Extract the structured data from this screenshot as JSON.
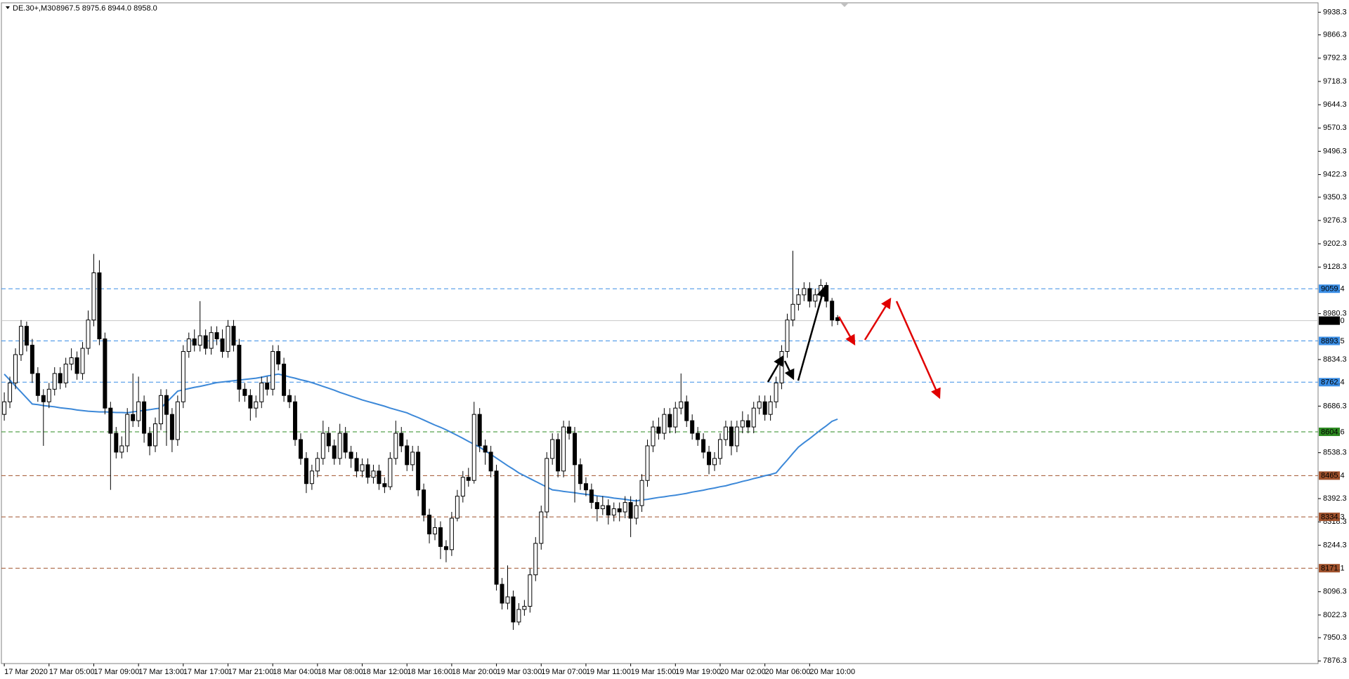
{
  "chart_data": {
    "type": "candlestick",
    "symbol": "DE.30+,M30",
    "quote": "8967.5 8975.6 8944.0 8958.0",
    "categories": [
      "17 Mar 2020",
      null,
      null,
      null,
      null,
      null,
      null,
      null,
      "17 Mar 05:00",
      null,
      null,
      null,
      null,
      null,
      null,
      null,
      "17 Mar 09:00",
      null,
      null,
      null,
      null,
      null,
      null,
      null,
      "17 Mar 13:00",
      null,
      null,
      null,
      null,
      null,
      null,
      null,
      "17 Mar 17:00",
      null,
      null,
      null,
      null,
      null,
      null,
      null,
      "17 Mar 21:00",
      null,
      null,
      null,
      null,
      null,
      null,
      null,
      "18 Mar 04:00",
      null,
      null,
      null,
      null,
      null,
      null,
      null,
      "18 Mar 08:00",
      null,
      null,
      null,
      null,
      null,
      null,
      null,
      "18 Mar 12:00",
      null,
      null,
      null,
      null,
      null,
      null,
      null,
      "18 Mar 16:00",
      null,
      null,
      null,
      null,
      null,
      null,
      null,
      "18 Mar 20:00",
      null,
      null,
      null,
      null,
      null,
      null,
      null,
      "19 Mar 03:00",
      null,
      null,
      null,
      null,
      null,
      null,
      null,
      "19 Mar 07:00",
      null,
      null,
      null,
      null,
      null,
      null,
      null,
      "19 Mar 11:00",
      null,
      null,
      null,
      null,
      null,
      null,
      null,
      "19 Mar 15:00",
      null,
      null,
      null,
      null,
      null,
      null,
      null,
      "19 Mar 19:00",
      null,
      null,
      null,
      null,
      null,
      null,
      null,
      "20 Mar 02:00",
      null,
      null,
      null,
      null,
      null,
      null,
      null,
      "20 Mar 06:00",
      null,
      null,
      null,
      null,
      null,
      null,
      null,
      "20 Mar 10:00",
      null,
      null,
      null,
      null,
      null
    ],
    "open": [
      8660,
      8700,
      8760,
      8850,
      8940,
      8880,
      8790,
      8720,
      8700,
      8740,
      8790,
      8760,
      8820,
      8840,
      8790,
      8870,
      8960,
      9110,
      8900,
      8680,
      8600,
      8540,
      8560,
      8660,
      8640,
      8700,
      8600,
      8560,
      8630,
      8720,
      8660,
      8580,
      8700,
      8860,
      8900,
      8880,
      8910,
      8870,
      8920,
      8900,
      8860,
      8940,
      8880,
      8740,
      8720,
      8680,
      8700,
      8760,
      8740,
      8860,
      8820,
      8720,
      8700,
      8580,
      8520,
      8440,
      8480,
      8520,
      8600,
      8560,
      8520,
      8600,
      8540,
      8520,
      8480,
      8500,
      8460,
      8480,
      8440,
      8430,
      8520,
      8600,
      8560,
      8500,
      8540,
      8420,
      8340,
      8280,
      8300,
      8240,
      8230,
      8330,
      8400,
      8460,
      8450,
      8660,
      8560,
      8540,
      8480,
      8120,
      8060,
      8080,
      8000,
      8040,
      8050,
      8150,
      8250,
      8350,
      8520,
      8580,
      8480,
      8620,
      8600,
      8500,
      8440,
      8420,
      8380,
      8360,
      8370,
      8340,
      8360,
      8350,
      8380,
      8330,
      8370,
      8450,
      8560,
      8620,
      8600,
      8660,
      8620,
      8680,
      8700,
      8640,
      8600,
      8580,
      8540,
      8500,
      8520,
      8580,
      8620,
      8560,
      8620,
      8640,
      8620,
      8680,
      8700,
      8660,
      8700,
      8760,
      8860,
      8960,
      9010,
      9040,
      9060,
      9020,
      9040,
      9070,
      9020,
      8967.5
    ],
    "high": [
      8730,
      8780,
      8870,
      8960,
      8955,
      8900,
      8810,
      8740,
      8760,
      8810,
      8810,
      8840,
      8870,
      8860,
      8890,
      8990,
      9170,
      9150,
      8920,
      8700,
      8620,
      8590,
      8680,
      8790,
      8780,
      8720,
      8620,
      8650,
      8740,
      8740,
      8680,
      8720,
      8880,
      8920,
      8930,
      9020,
      8930,
      8940,
      8940,
      8930,
      8960,
      8960,
      8900,
      8760,
      8740,
      8720,
      8780,
      8780,
      8880,
      8880,
      8840,
      8740,
      8720,
      8600,
      8540,
      8500,
      8540,
      8640,
      8620,
      8580,
      8630,
      8620,
      8560,
      8540,
      8520,
      8520,
      8500,
      8500,
      8460,
      8540,
      8640,
      8620,
      8580,
      8560,
      8560,
      8440,
      8360,
      8330,
      8320,
      8260,
      8350,
      8420,
      8480,
      8490,
      8700,
      8680,
      8580,
      8560,
      8500,
      8140,
      8180,
      8100,
      8060,
      8070,
      8170,
      8270,
      8370,
      8540,
      8600,
      8600,
      8640,
      8640,
      8620,
      8520,
      8460,
      8440,
      8400,
      8400,
      8390,
      8380,
      8380,
      8400,
      8400,
      8390,
      8470,
      8580,
      8640,
      8650,
      8680,
      8680,
      8700,
      8790,
      8720,
      8660,
      8620,
      8600,
      8560,
      8540,
      8600,
      8640,
      8640,
      8640,
      8670,
      8660,
      8700,
      8720,
      8720,
      8720,
      8780,
      8880,
      8980,
      9180,
      9060,
      9080,
      9080,
      9060,
      9090,
      9080,
      9030,
      8975.6
    ],
    "low": [
      8640,
      8680,
      8740,
      8830,
      8860,
      8760,
      8700,
      8560,
      8680,
      8720,
      8740,
      8745,
      8800,
      8770,
      8770,
      8850,
      8940,
      8880,
      8660,
      8420,
      8520,
      8520,
      8540,
      8620,
      8620,
      8570,
      8530,
      8540,
      8610,
      8560,
      8540,
      8560,
      8680,
      8840,
      8860,
      8860,
      8850,
      8850,
      8880,
      8840,
      8840,
      8860,
      8700,
      8700,
      8640,
      8650,
      8680,
      8720,
      8720,
      8800,
      8700,
      8680,
      8560,
      8500,
      8410,
      8420,
      8460,
      8500,
      8540,
      8500,
      8500,
      8520,
      8490,
      8460,
      8460,
      8440,
      8440,
      8420,
      8410,
      8420,
      8500,
      8540,
      8480,
      8480,
      8400,
      8320,
      8250,
      8260,
      8200,
      8190,
      8210,
      8320,
      8380,
      8430,
      8440,
      8540,
      8500,
      8460,
      8100,
      8040,
      8040,
      7975,
      7990,
      8020,
      8030,
      8130,
      8230,
      8330,
      8500,
      8460,
      8460,
      8580,
      8380,
      8420,
      8400,
      8360,
      8320,
      8340,
      8310,
      8320,
      8320,
      8330,
      8270,
      8310,
      8350,
      8430,
      8540,
      8580,
      8580,
      8600,
      8600,
      8660,
      8620,
      8580,
      8560,
      8520,
      8470,
      8480,
      8500,
      8560,
      8530,
      8540,
      8600,
      8600,
      8600,
      8660,
      8640,
      8640,
      8680,
      8740,
      8840,
      8940,
      8990,
      9020,
      9000,
      9000,
      9020,
      9000,
      8940,
      8944
    ],
    "close": [
      8700,
      8760,
      8850,
      8940,
      8880,
      8790,
      8720,
      8700,
      8740,
      8790,
      8760,
      8820,
      8840,
      8790,
      8870,
      8960,
      9110,
      8900,
      8680,
      8600,
      8540,
      8560,
      8660,
      8640,
      8700,
      8600,
      8560,
      8630,
      8720,
      8660,
      8580,
      8700,
      8860,
      8900,
      8880,
      8910,
      8870,
      8920,
      8900,
      8860,
      8940,
      8880,
      8740,
      8720,
      8680,
      8700,
      8760,
      8740,
      8860,
      8820,
      8720,
      8700,
      8580,
      8520,
      8440,
      8480,
      8520,
      8600,
      8560,
      8520,
      8600,
      8540,
      8520,
      8480,
      8500,
      8460,
      8480,
      8440,
      8430,
      8520,
      8600,
      8560,
      8500,
      8540,
      8420,
      8340,
      8280,
      8300,
      8240,
      8230,
      8330,
      8400,
      8460,
      8450,
      8660,
      8560,
      8540,
      8480,
      8120,
      8060,
      8080,
      8000,
      8040,
      8050,
      8150,
      8250,
      8350,
      8520,
      8580,
      8480,
      8620,
      8600,
      8500,
      8440,
      8420,
      8380,
      8360,
      8370,
      8340,
      8360,
      8350,
      8380,
      8330,
      8370,
      8450,
      8560,
      8620,
      8600,
      8660,
      8620,
      8680,
      8700,
      8640,
      8600,
      8580,
      8540,
      8500,
      8520,
      8580,
      8620,
      8560,
      8620,
      8640,
      8620,
      8680,
      8700,
      8660,
      8700,
      8760,
      8860,
      8960,
      9010,
      9040,
      9060,
      9020,
      9040,
      9070,
      9020,
      8960,
      8958
    ],
    "ma": {
      "color": "#3c88d8",
      "values": [
        8788,
        8769,
        8750,
        8731,
        8712,
        8693,
        8691,
        8688,
        8686,
        8684,
        8681,
        8679,
        8677,
        8674,
        8672,
        8670,
        8669,
        8668,
        8668,
        8667,
        8666,
        8666,
        8665,
        8668,
        8670,
        8673,
        8675,
        8678,
        8680,
        8698,
        8716,
        8734,
        8738,
        8742,
        8746,
        8749,
        8753,
        8757,
        8761,
        8763,
        8765,
        8767,
        8769,
        8771,
        8773,
        8775,
        8778,
        8782,
        8785,
        8788,
        8784,
        8779,
        8775,
        8770,
        8766,
        8761,
        8755,
        8749,
        8743,
        8737,
        8730,
        8724,
        8718,
        8712,
        8706,
        8701,
        8696,
        8691,
        8686,
        8680,
        8675,
        8670,
        8665,
        8657,
        8650,
        8642,
        8634,
        8626,
        8619,
        8611,
        8602,
        8593,
        8584,
        8574,
        8565,
        8556,
        8544,
        8533,
        8521,
        8509,
        8497,
        8486,
        8474,
        8465,
        8456,
        8447,
        8438,
        8429,
        8420,
        8418,
        8415,
        8413,
        8411,
        8408,
        8406,
        8404,
        8401,
        8399,
        8397,
        8394,
        8392,
        8390,
        8387,
        8385,
        8388,
        8390,
        8393,
        8396,
        8398,
        8401,
        8403,
        8406,
        8409,
        8413,
        8416,
        8419,
        8423,
        8426,
        8430,
        8433,
        8438,
        8442,
        8447,
        8451,
        8456,
        8460,
        8465,
        8469,
        8474,
        8495,
        8515,
        8536,
        8556,
        8570,
        8583,
        8597,
        8611,
        8624,
        8638,
        8645
      ]
    },
    "bull_color": "#ffffff",
    "bear_color": "#000000",
    "ylim": [
      7868,
      9966
    ],
    "yticks": [
      9938.3,
      9866.3,
      9792.3,
      9718.3,
      9644.3,
      9570.3,
      9496.3,
      9422.3,
      9350.3,
      9276.3,
      9202.3,
      9128.3,
      8980.3,
      8834.3,
      8686.3,
      8538.3,
      8392.3,
      8318.3,
      8244.3,
      8096.3,
      8022.3,
      7950.3,
      7876.3
    ],
    "levels": [
      {
        "value": 9059.4,
        "color": "#3a8ee6",
        "dashed": true
      },
      {
        "value": 8958,
        "label": "8958.0",
        "color": "#000000",
        "line_color": "#c8c8c8",
        "dashed": false
      },
      {
        "value": 8893.5,
        "color": "#3a8ee6",
        "dashed": true
      },
      {
        "value": 8762.4,
        "color": "#3a8ee6",
        "dashed": true
      },
      {
        "value": 8604.6,
        "color": "#2e8b22",
        "dashed": true
      },
      {
        "value": 8465.4,
        "color": "#a0522d",
        "dashed": true
      },
      {
        "value": 8334.3,
        "color": "#a0522d",
        "dashed": true
      },
      {
        "value": 8171.1,
        "color": "#a0522d",
        "dashed": true
      }
    ]
  }
}
